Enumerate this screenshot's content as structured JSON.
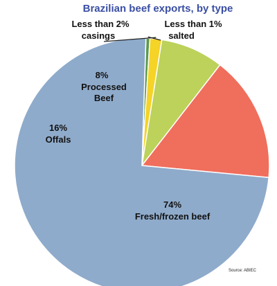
{
  "chart_data": {
    "type": "pie",
    "title": "Brazilian beef exports, by type",
    "source": "Source: ABIEC",
    "slices": [
      {
        "name": "salted",
        "pct_label": "Less than 1%",
        "value": 0.5,
        "color": "#5b9a4d"
      },
      {
        "name": "casings",
        "pct_label": "Less than 2%",
        "value": 1.5,
        "color": "#f5d327"
      },
      {
        "name": "Processed Beef",
        "pct_label": "8%",
        "value": 8,
        "color": "#bcd25a"
      },
      {
        "name": "Offals",
        "pct_label": "16%",
        "value": 16,
        "color": "#f06e5c"
      },
      {
        "name": "Fresh/frozen beef",
        "pct_label": "74%",
        "value": 74,
        "color": "#8fabcb"
      }
    ],
    "legend": "none"
  }
}
